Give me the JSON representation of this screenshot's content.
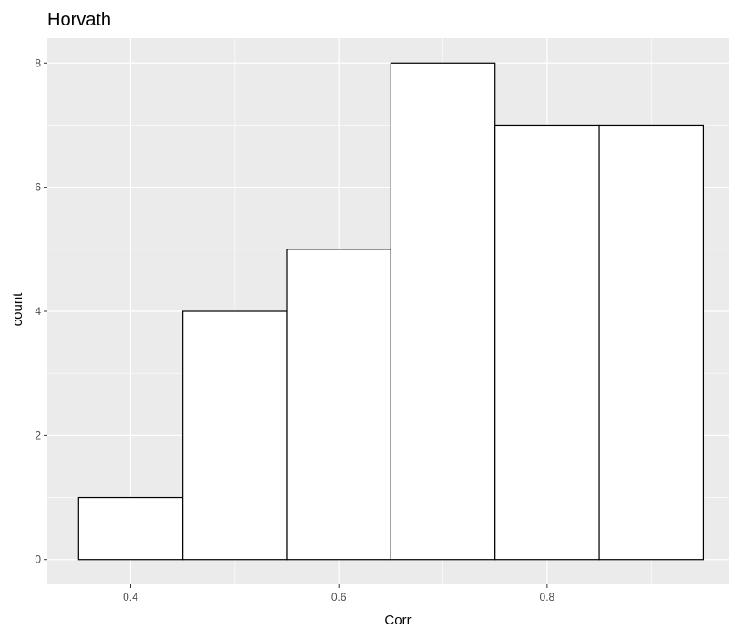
{
  "chart_data": {
    "type": "bar",
    "title": "Horvath",
    "xlabel": "Corr",
    "ylabel": "count",
    "bins": [
      {
        "x0": 0.35,
        "x1": 0.45,
        "count": 1
      },
      {
        "x0": 0.45,
        "x1": 0.55,
        "count": 4
      },
      {
        "x0": 0.55,
        "x1": 0.65,
        "count": 5
      },
      {
        "x0": 0.65,
        "x1": 0.75,
        "count": 8
      },
      {
        "x0": 0.75,
        "x1": 0.85,
        "count": 7
      },
      {
        "x0": 0.85,
        "x1": 0.95,
        "count": 7
      }
    ],
    "xlim": [
      0.32,
      0.975
    ],
    "ylim": [
      -0.4,
      8.4
    ],
    "x_ticks": [
      0.4,
      0.6,
      0.8
    ],
    "x_tick_labels": [
      "0.4",
      "0.6",
      "0.8"
    ],
    "y_ticks": [
      0,
      2,
      4,
      6,
      8
    ],
    "y_tick_labels": [
      "0",
      "2",
      "4",
      "6",
      "8"
    ],
    "grid": true,
    "colors": {
      "panel_background": "#ebebeb",
      "grid_major": "#ffffff",
      "bar_fill": "#ffffff",
      "bar_outline": "#000000"
    }
  }
}
